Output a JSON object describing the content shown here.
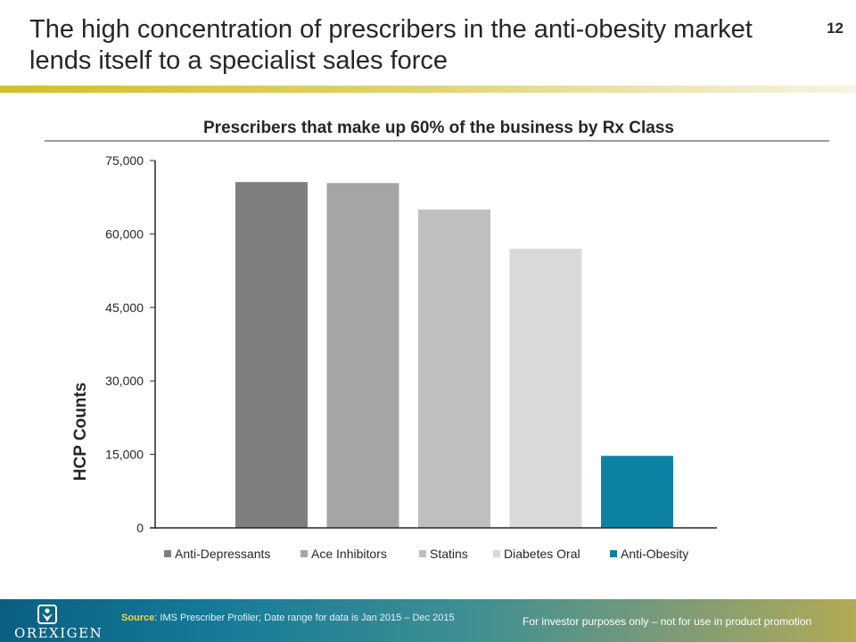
{
  "slide": {
    "title": "The high concentration of prescribers in the anti-obesity market lends itself to a specialist sales force",
    "page_number": "12"
  },
  "chart_data": {
    "type": "bar",
    "title": "Prescribers that make up 60% of the business by Rx Class",
    "xlabel": "",
    "ylabel": "HCP Counts",
    "ylim": [
      0,
      75000
    ],
    "yticks": [
      0,
      15000,
      30000,
      45000,
      60000,
      75000
    ],
    "ytick_labels": [
      "0",
      "15,000",
      "30,000",
      "45,000",
      "60,000",
      "75,000"
    ],
    "categories": [
      "Anti-Depressants",
      "Ace Inhibitors",
      "Statins",
      "Diabetes Oral",
      "Anti-Obesity"
    ],
    "values": [
      70600,
      70400,
      65000,
      57000,
      14700
    ],
    "colors": [
      "#7f7f7f",
      "#a5a5a5",
      "#bfbfbf",
      "#d9d9d9",
      "#0e82a5"
    ],
    "legend_position": "bottom"
  },
  "footer": {
    "logo_text": "OREXIGEN",
    "source_label": "Source",
    "source_text": ": IMS Prescriber Profiler; Date range for data is Jan 2015 – Dec 2015",
    "disclaimer": "For investor purposes only – not for use in product promotion"
  }
}
